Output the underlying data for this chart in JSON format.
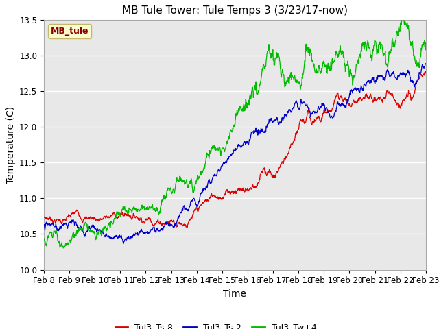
{
  "title": "MB Tule Tower: Tule Temps 3 (3/23/17-now)",
  "xlabel": "Time",
  "ylabel": "Temperature (C)",
  "ylim": [
    10.0,
    13.5
  ],
  "background_color": "#ffffff",
  "plot_bg_color": "#e8e8e8",
  "grid_color": "#ffffff",
  "legend_label": "MB_tule",
  "legend_bg": "#ffffcc",
  "legend_border": "#bbaa44",
  "legend_text_color": "#880000",
  "series_labels": [
    "Tul3_Ts-8",
    "Tul3_Ts-2",
    "Tul3_Tw+4"
  ],
  "series_colors": [
    "#dd0000",
    "#0000cc",
    "#00bb00"
  ],
  "x_tick_labels": [
    "Feb 8",
    "Feb 9",
    "Feb 10",
    "Feb 11",
    "Feb 12",
    "Feb 13",
    "Feb 14",
    "Feb 15",
    "Feb 16",
    "Feb 17",
    "Feb 18",
    "Feb 19",
    "Feb 20",
    "Feb 21",
    "Feb 22",
    "Feb 23"
  ],
  "y_ticks": [
    10.0,
    10.5,
    11.0,
    11.5,
    12.0,
    12.5,
    13.0,
    13.5
  ],
  "title_fontsize": 11,
  "axis_fontsize": 10,
  "tick_fontsize": 8.5
}
